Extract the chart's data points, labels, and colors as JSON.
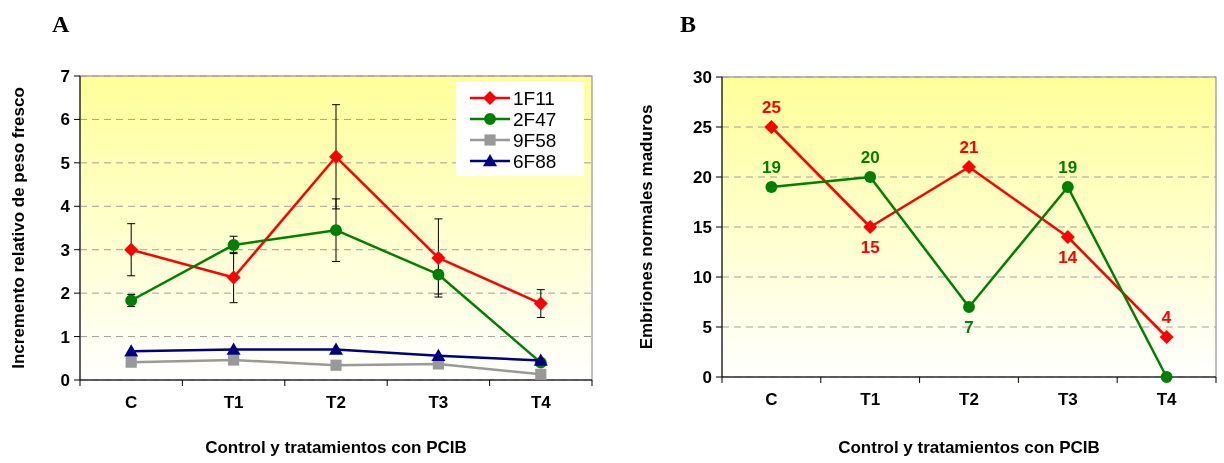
{
  "chart_data": [
    {
      "type": "line",
      "title": "A",
      "xlabel": "Control y tratamientos con PCIB",
      "ylabel": "Incremento relativo de peso fresco",
      "categories": [
        "C",
        "T1",
        "T2",
        "T3",
        "T4"
      ],
      "ylim": [
        0,
        7
      ],
      "yticks": [
        0,
        1,
        2,
        3,
        4,
        5,
        6,
        7
      ],
      "grid": "y",
      "legend": "top right",
      "series": [
        {
          "name": "1F11",
          "color": "#ff0000",
          "marker": "diamond",
          "values": [
            3.0,
            2.36,
            5.14,
            2.81,
            1.76
          ],
          "errors": [
            0.6,
            0.58,
            1.2,
            0.9,
            0.32
          ]
        },
        {
          "name": "2F47",
          "color": "#008000",
          "marker": "circle",
          "values": [
            1.83,
            3.11,
            3.45,
            2.43,
            0.4
          ],
          "errors": [
            0.14,
            0.2,
            0.72,
            0.45,
            null
          ]
        },
        {
          "name": "9F58",
          "color": "#999999",
          "marker": "square",
          "values": [
            0.41,
            0.46,
            0.34,
            0.37,
            0.13
          ]
        },
        {
          "name": "6F88",
          "color": "#000080",
          "marker": "triangle",
          "values": [
            0.66,
            0.7,
            0.7,
            0.56,
            0.45
          ]
        }
      ]
    },
    {
      "type": "line",
      "title": "B",
      "xlabel": "Control y tratamientos con PCIB",
      "ylabel": "Embriones normales maduros",
      "categories": [
        "C",
        "T1",
        "T2",
        "T3",
        "T4"
      ],
      "ylim": [
        0,
        30
      ],
      "yticks": [
        0,
        5,
        10,
        15,
        20,
        25,
        30
      ],
      "grid": "y",
      "legend": false,
      "series": [
        {
          "color": "#ff0000",
          "marker": "diamond",
          "values": [
            25,
            15,
            21,
            14,
            4
          ],
          "value_labels": [
            "25",
            "15",
            "21",
            "14",
            "4"
          ]
        },
        {
          "color": "#008000",
          "marker": "circle",
          "values": [
            19,
            20,
            7,
            19,
            0
          ],
          "value_labels": [
            "19",
            "20",
            "7",
            "19",
            null
          ]
        }
      ]
    }
  ]
}
